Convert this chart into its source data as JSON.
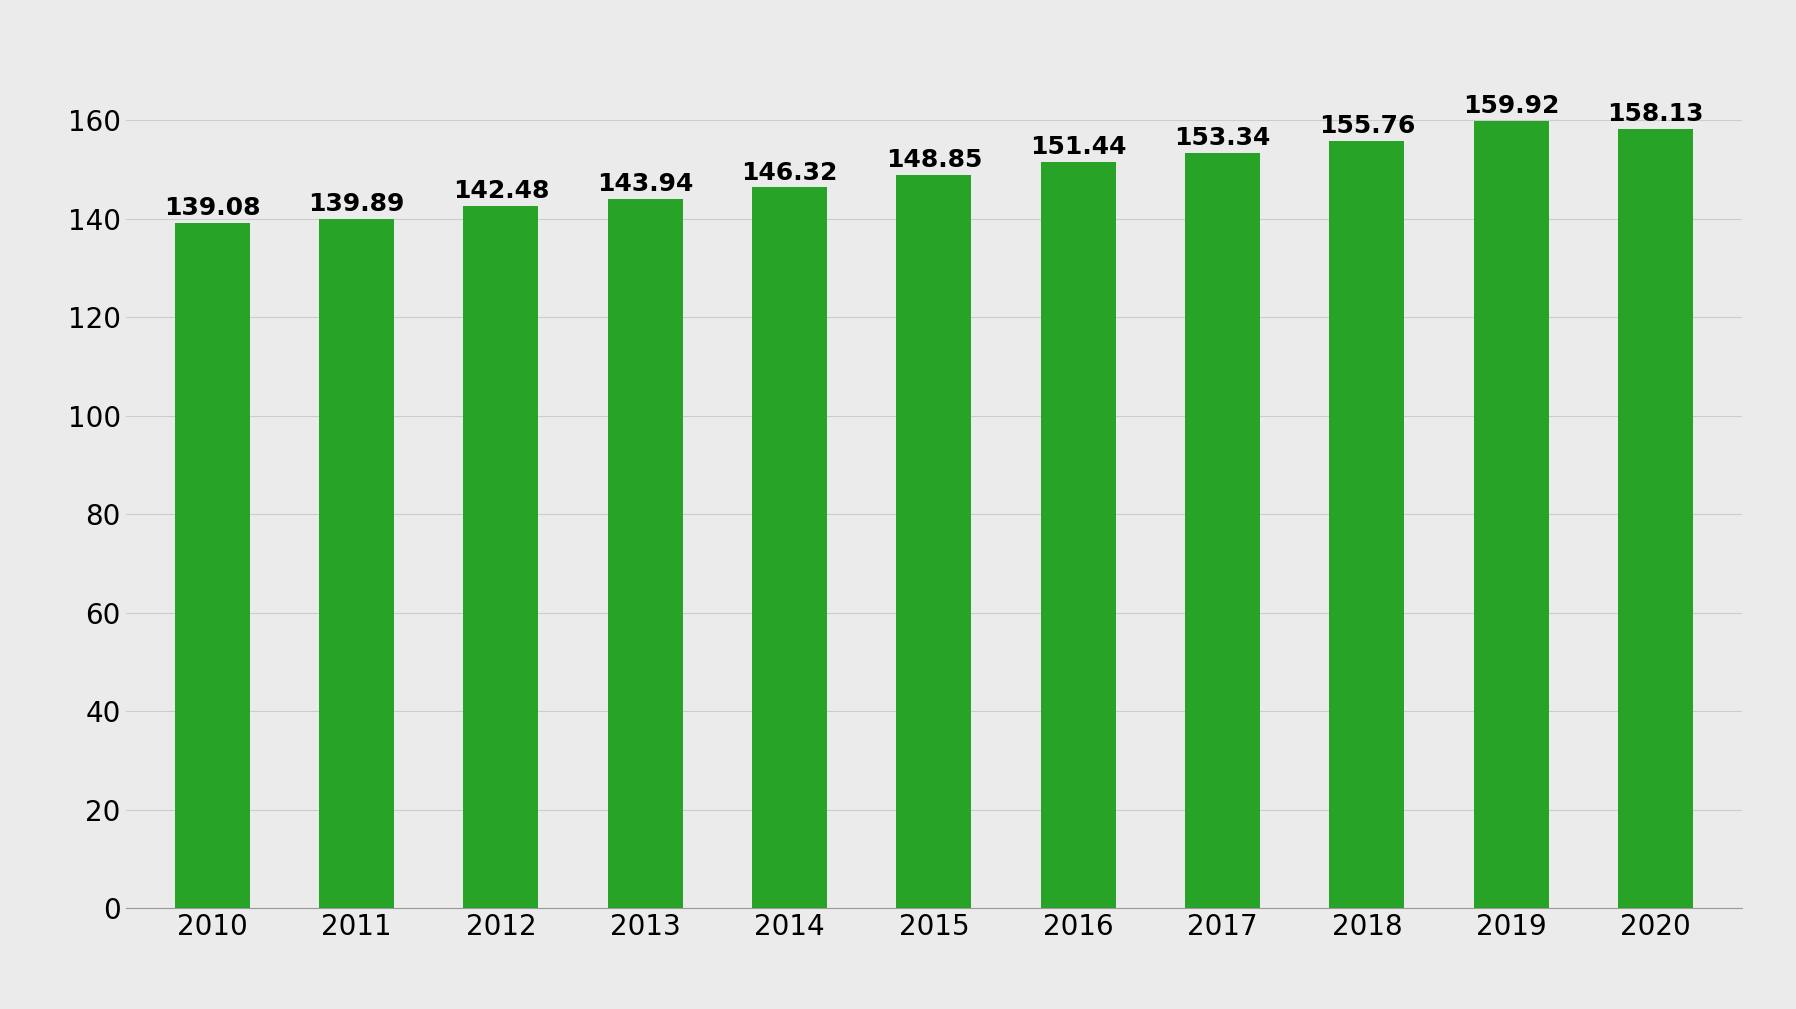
{
  "categories": [
    "2010",
    "2011",
    "2012",
    "2013",
    "2014",
    "2015",
    "2016",
    "2017",
    "2018",
    "2019",
    "2020"
  ],
  "values": [
    139.08,
    139.89,
    142.48,
    143.94,
    146.32,
    148.85,
    151.44,
    153.34,
    155.76,
    159.92,
    158.13
  ],
  "bar_color": "#27a327",
  "background_color": "#ebebeb",
  "ylim": [
    0,
    168
  ],
  "yticks": [
    0,
    20,
    40,
    60,
    80,
    100,
    120,
    140,
    160
  ],
  "grid_color": "#cccccc",
  "tick_fontsize": 20,
  "value_label_fontsize": 18,
  "bar_width": 0.52
}
